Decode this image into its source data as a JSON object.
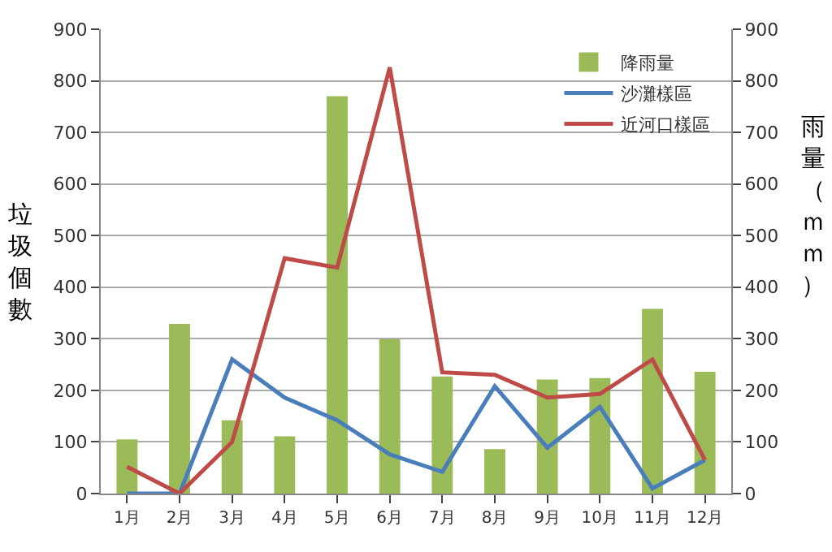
{
  "chart_data": {
    "type": "line",
    "ylabel": "垃圾個數",
    "y2label": "雨量（ｍｍ）",
    "categories": [
      "1月",
      "2月",
      "3月",
      "4月",
      "5月",
      "6月",
      "7月",
      "8月",
      "9月",
      "10月",
      "11月",
      "12月"
    ],
    "series": [
      {
        "name": "降雨量",
        "type": "bar",
        "axis": "y2",
        "color": "#9bbb59",
        "values": [
          105,
          329,
          142,
          111,
          770,
          299,
          227,
          86,
          221,
          224,
          358,
          236
        ]
      },
      {
        "name": "沙灘樣區",
        "color": "#4a7ebb",
        "values": [
          0,
          0,
          260,
          186,
          142,
          76,
          42,
          208,
          89,
          168,
          10,
          65
        ]
      },
      {
        "name": "近河口樣區",
        "color": "#be4b48",
        "values": [
          52,
          0,
          100,
          456,
          438,
          826,
          235,
          230,
          186,
          193,
          260,
          65
        ]
      }
    ],
    "ylim": [
      0,
      900
    ],
    "yticks": [
      0,
      100,
      200,
      300,
      400,
      500,
      600,
      700,
      800,
      900
    ],
    "y2lim": [
      0,
      900
    ],
    "y2ticks": [
      0,
      100,
      200,
      300,
      400,
      500,
      600,
      700,
      800,
      900
    ],
    "grid": "y",
    "legend": "top right",
    "marker": "none",
    "line_style": "solid"
  }
}
